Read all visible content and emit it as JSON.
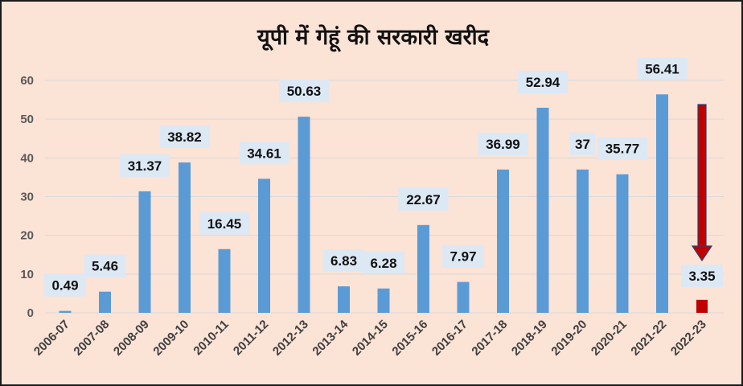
{
  "chart_data": {
    "type": "bar",
    "title": "यूपी में गेहूं की सरकारी खरीद",
    "xlabel": "",
    "ylabel": "",
    "ylim": [
      0,
      60
    ],
    "yticks": [
      "0",
      "10",
      "20",
      "30",
      "40",
      "50",
      "60"
    ],
    "grid": true,
    "categories": [
      "2006-07",
      "2007-08",
      "2008-09",
      "2009-10",
      "2010-11",
      "2011-12",
      "2012-13",
      "2013-14",
      "2014-15",
      "2015-16",
      "2016-17",
      "2017-18",
      "2018-19",
      "2019-20",
      "2020-21",
      "2021-22",
      "2022-23"
    ],
    "values": [
      0.49,
      5.46,
      31.37,
      38.82,
      16.45,
      34.61,
      50.63,
      6.83,
      6.28,
      22.67,
      7.97,
      36.99,
      52.94,
      37,
      35.77,
      56.41,
      3.35
    ],
    "data_labels": [
      "0.49",
      "5.46",
      "31.37",
      "38.82",
      "16.45",
      "34.61",
      "50.63",
      "6.83",
      "6.28",
      "22.67",
      "7.97",
      "36.99",
      "52.94",
      "37",
      "35.77",
      "56.41",
      "3.35"
    ],
    "colors": {
      "bar": "#5b9bd5",
      "highlight_bar": "#c00000",
      "label_box": "#dde8f5",
      "background": "#fbe3d6",
      "arrow": "#c00000",
      "gridline": "#d9d9d9"
    },
    "highlight_index": 16,
    "annotations": [
      "down-arrow-icon"
    ]
  }
}
